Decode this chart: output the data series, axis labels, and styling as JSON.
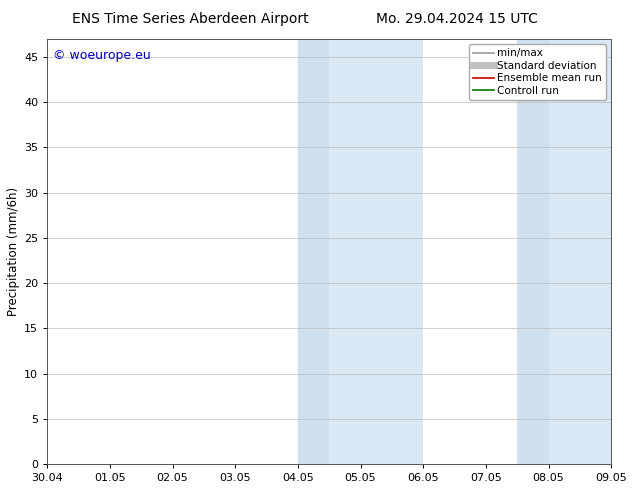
{
  "title_left": "ENS Time Series Aberdeen Airport",
  "title_right": "Mo. 29.04.2024 15 UTC",
  "ylabel": "Precipitation (mm/6h)",
  "xlabel": "",
  "xlim_dates": [
    "30.04",
    "01.05",
    "02.05",
    "03.05",
    "04.05",
    "05.05",
    "06.05",
    "07.05",
    "08.05",
    "09.05"
  ],
  "xlim": [
    0,
    9
  ],
  "ylim": [
    0,
    47
  ],
  "yticks": [
    0,
    5,
    10,
    15,
    20,
    25,
    30,
    35,
    40,
    45
  ],
  "shaded_regions": [
    {
      "x_start": 4.0,
      "x_end": 4.5,
      "color": "#cfe0ef"
    },
    {
      "x_start": 4.5,
      "x_end": 6.0,
      "color": "#d8e8f4"
    },
    {
      "x_start": 7.5,
      "x_end": 8.0,
      "color": "#cfe0ef"
    },
    {
      "x_start": 8.0,
      "x_end": 9.0,
      "color": "#d8e8f4"
    }
  ],
  "legend_entries": [
    {
      "label": "min/max",
      "color": "#999999",
      "lw": 1.2
    },
    {
      "label": "Standard deviation",
      "color": "#c0c0c0",
      "lw": 5
    },
    {
      "label": "Ensemble mean run",
      "color": "#cc0000",
      "lw": 1.2
    },
    {
      "label": "Controll run",
      "color": "#007700",
      "lw": 1.2
    }
  ],
  "watermark": "© woeurope.eu",
  "watermark_color": "#0000bb",
  "background_color": "#ffffff",
  "grid_color": "#bbbbbb",
  "spine_color": "#555555",
  "title_fontsize": 10,
  "label_fontsize": 8.5,
  "tick_fontsize": 8,
  "legend_fontsize": 7.5,
  "watermark_fontsize": 9
}
